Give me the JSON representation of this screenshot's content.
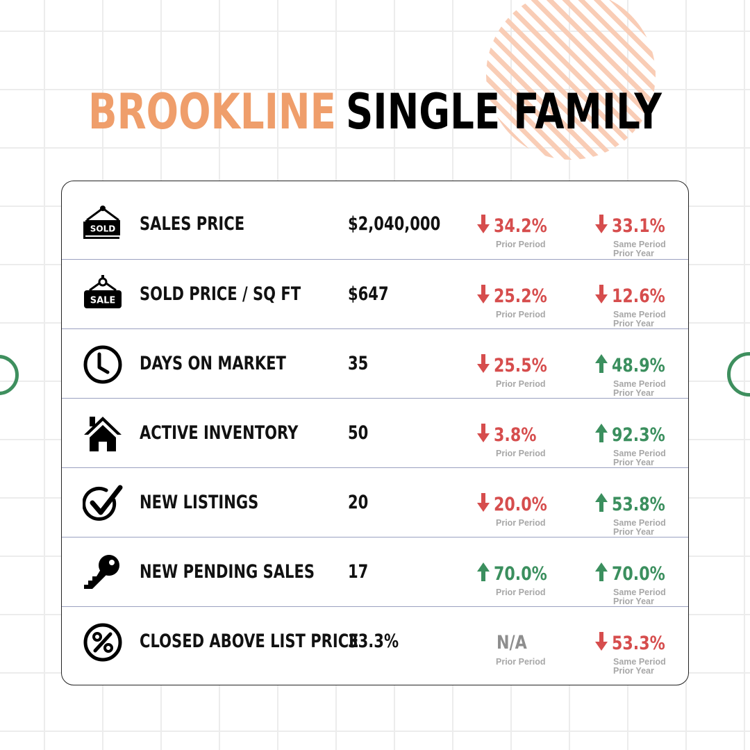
{
  "title": {
    "city": "BROOKLINE",
    "type": "SINGLE FAMILY"
  },
  "labels": {
    "prior_period": "Prior Period",
    "same_period_1": "Same Period",
    "same_period_2": "Prior Year"
  },
  "colors": {
    "accent": "#ef9e6b",
    "down": "#d64d4d",
    "up": "#3b8f5e"
  },
  "rows": [
    {
      "icon": "sold-sign-icon",
      "icon_text": "SOLD",
      "label": "SALES PRICE",
      "value": "$2,040,000",
      "prior": {
        "dir": "down",
        "value": "34.2%"
      },
      "year": {
        "dir": "down",
        "value": "33.1%"
      }
    },
    {
      "icon": "sale-sign-icon",
      "icon_text": "SALE",
      "label": "SOLD PRICE / SQ FT",
      "value": "$647",
      "prior": {
        "dir": "down",
        "value": "25.2%"
      },
      "year": {
        "dir": "down",
        "value": "12.6%"
      }
    },
    {
      "icon": "clock-icon",
      "label": "DAYS ON MARKET",
      "value": "35",
      "prior": {
        "dir": "down",
        "value": "25.5%"
      },
      "year": {
        "dir": "up",
        "value": "48.9%"
      }
    },
    {
      "icon": "house-icon",
      "label": "ACTIVE INVENTORY",
      "value": "50",
      "prior": {
        "dir": "down",
        "value": "3.8%"
      },
      "year": {
        "dir": "up",
        "value": "92.3%"
      }
    },
    {
      "icon": "checkmark-icon",
      "label": "NEW LISTINGS",
      "value": "20",
      "prior": {
        "dir": "down",
        "value": "20.0%"
      },
      "year": {
        "dir": "up",
        "value": "53.8%"
      }
    },
    {
      "icon": "key-icon",
      "label": "NEW PENDING SALES",
      "value": "17",
      "prior": {
        "dir": "up",
        "value": "70.0%"
      },
      "year": {
        "dir": "up",
        "value": "70.0%"
      }
    },
    {
      "icon": "percent-icon",
      "label": "CLOSED ABOVE LIST PRICE",
      "value": "33.3%",
      "prior": {
        "dir": "none",
        "value": "N/A"
      },
      "year": {
        "dir": "down",
        "value": "53.3%"
      }
    }
  ]
}
